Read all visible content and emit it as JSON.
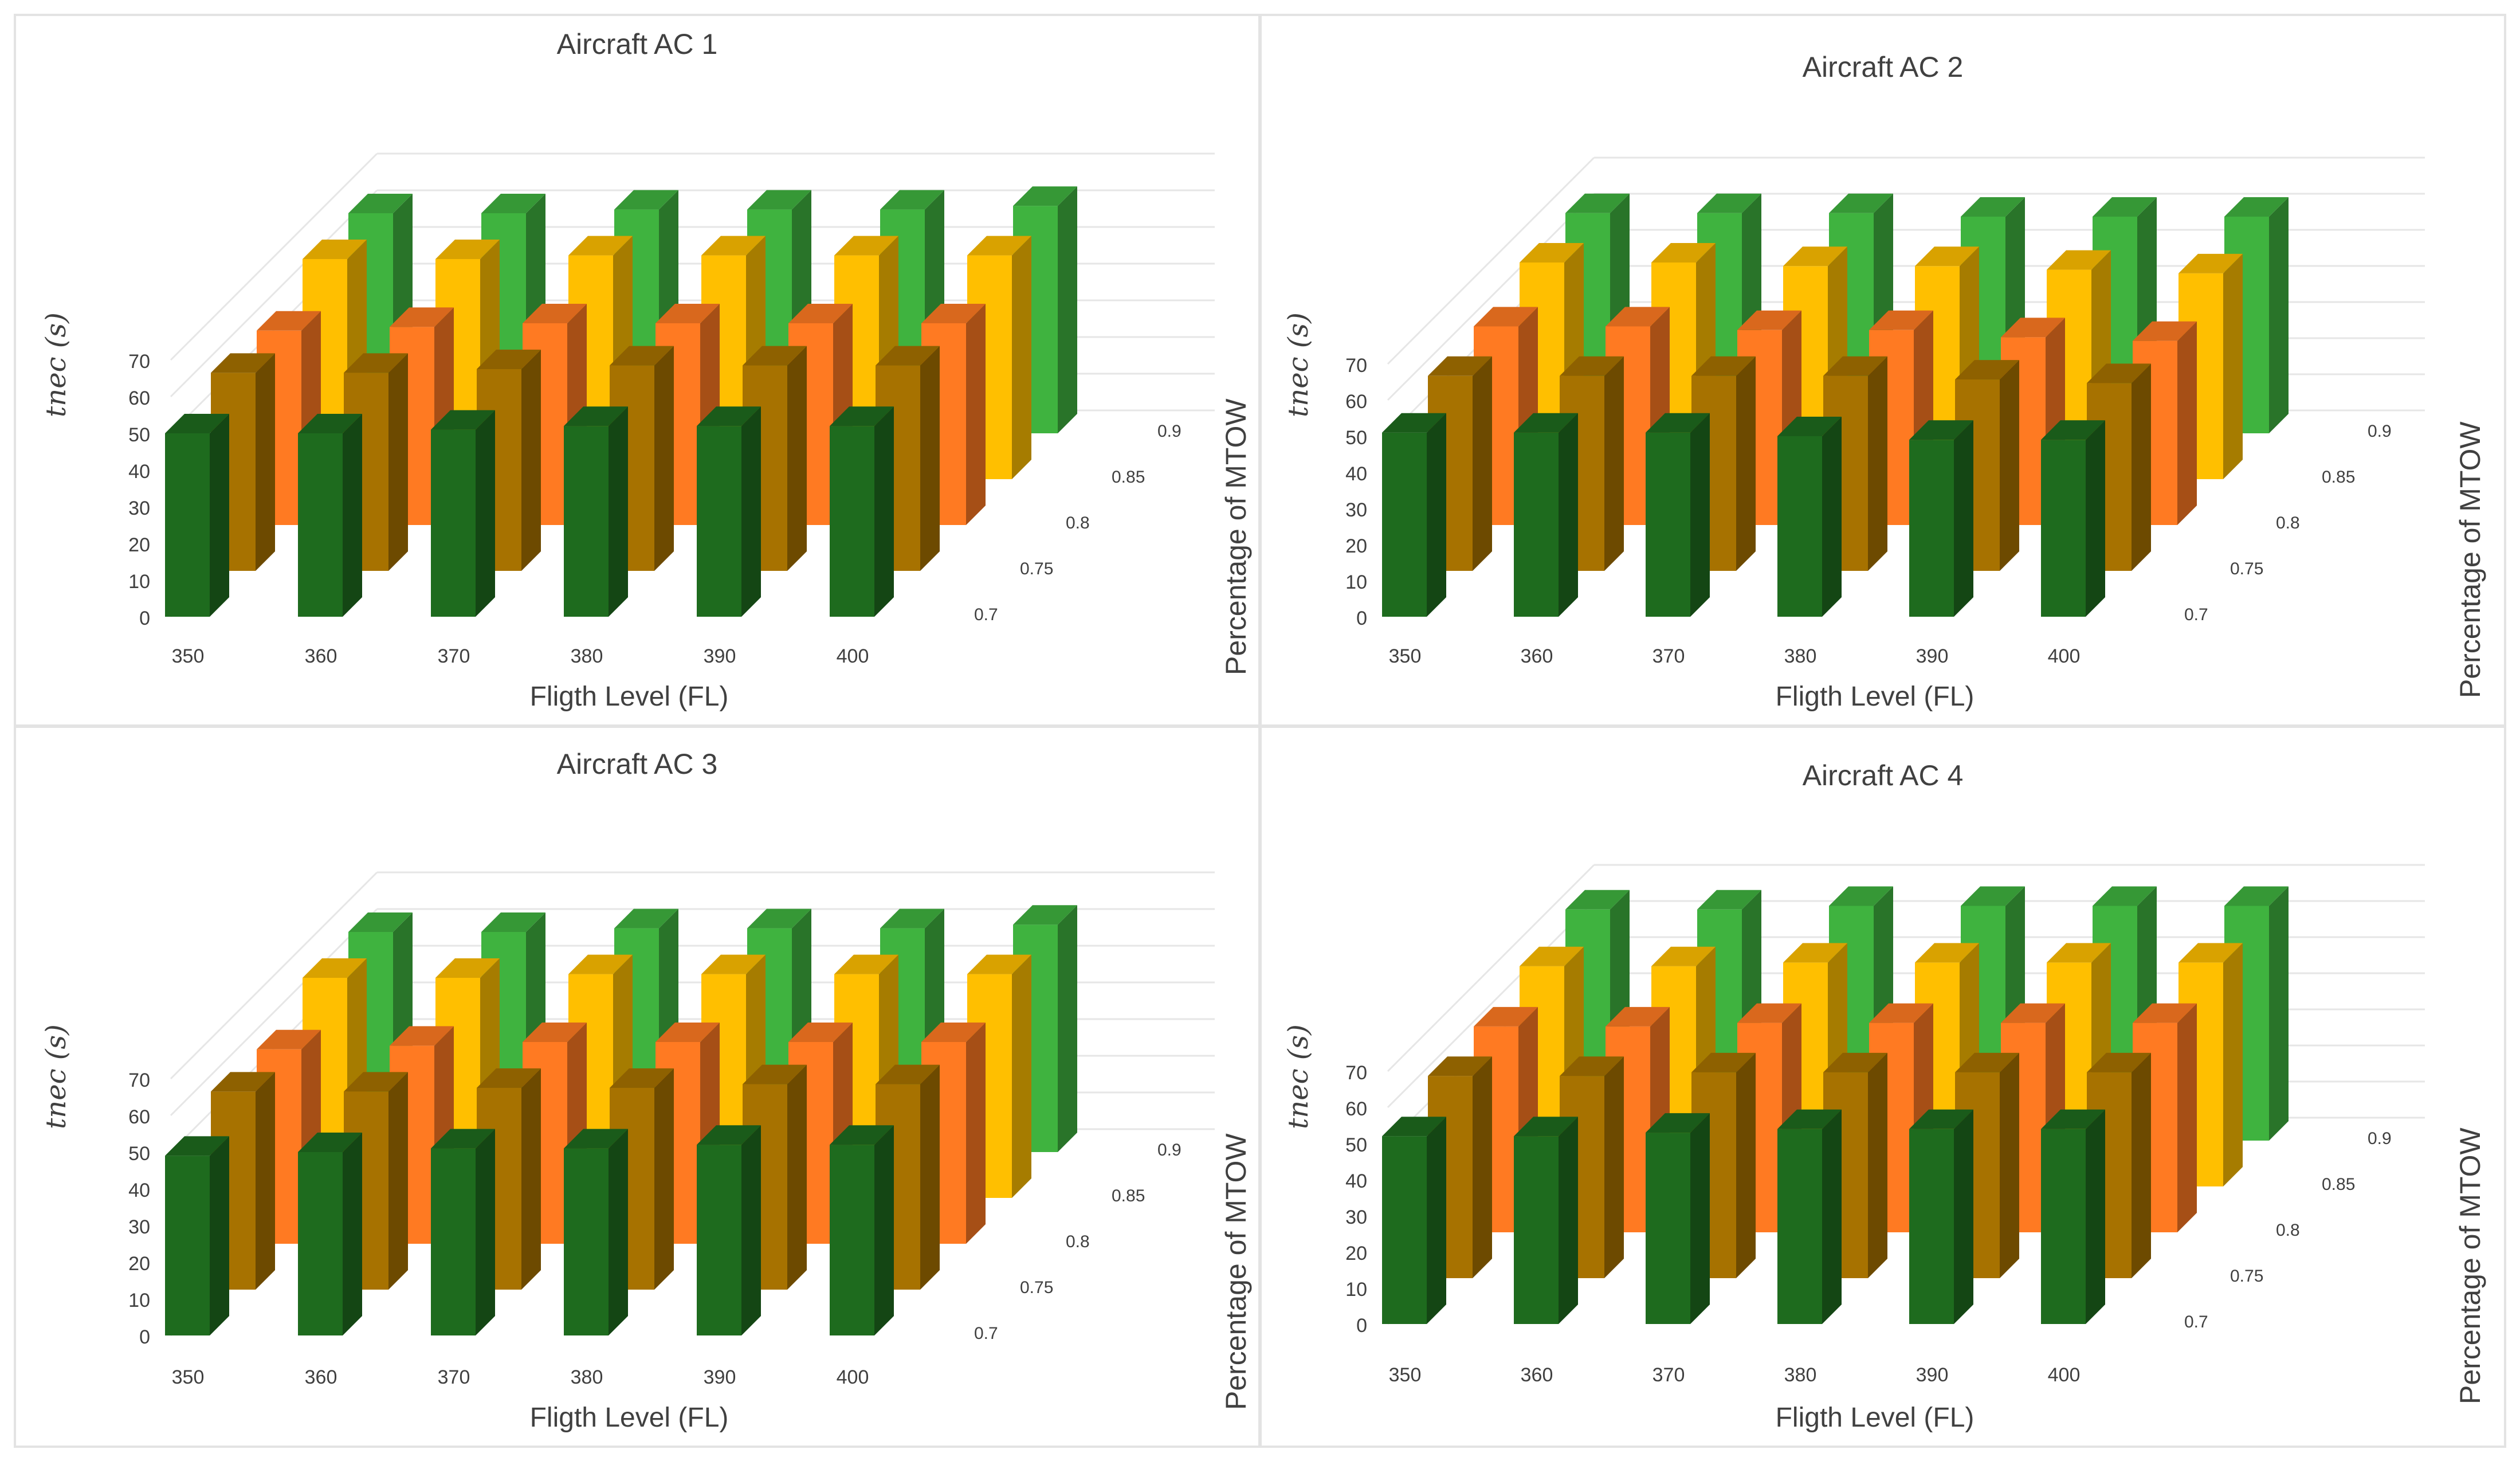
{
  "chart_data": [
    {
      "type": "bar",
      "title": "Aircraft AC 1",
      "xlabel": "Fligth Level (FL)",
      "ylabel": "tnec (s)",
      "zlabel": "Percentage of MTOW",
      "categories": [
        "350",
        "360",
        "370",
        "380",
        "390",
        "400"
      ],
      "ylim": [
        0,
        70
      ],
      "yticks": [
        "0",
        "10",
        "20",
        "30",
        "40",
        "50",
        "60",
        "70"
      ],
      "series": [
        {
          "name": "0.7",
          "color": "#1e6b1e",
          "values": [
            50,
            50,
            51,
            52,
            52,
            52
          ]
        },
        {
          "name": "0.75",
          "color": "#a77200",
          "values": [
            54,
            54,
            55,
            56,
            56,
            56
          ]
        },
        {
          "name": "0.8",
          "color": "#ff7a22",
          "values": [
            53,
            54,
            55,
            55,
            55,
            55
          ]
        },
        {
          "name": "0.85",
          "color": "#ffbf00",
          "values": [
            60,
            60,
            61,
            61,
            61,
            61
          ]
        },
        {
          "name": "0.9",
          "color": "#3fb33f",
          "values": [
            60,
            60,
            61,
            61,
            61,
            62
          ]
        }
      ]
    },
    {
      "type": "bar",
      "title": "Aircraft AC 2",
      "xlabel": "Fligth Level (FL)",
      "ylabel": "tnec (s)",
      "zlabel": "Percentage of MTOW",
      "categories": [
        "350",
        "360",
        "370",
        "380",
        "390",
        "400"
      ],
      "ylim": [
        0,
        70
      ],
      "yticks": [
        "0",
        "10",
        "20",
        "30",
        "40",
        "50",
        "60",
        "70"
      ],
      "series": [
        {
          "name": "0.7",
          "color": "#1e6b1e",
          "values": [
            51,
            51,
            51,
            50,
            49,
            49
          ]
        },
        {
          "name": "0.75",
          "color": "#a77200",
          "values": [
            54,
            54,
            54,
            54,
            53,
            52
          ]
        },
        {
          "name": "0.8",
          "color": "#ff7a22",
          "values": [
            55,
            55,
            54,
            54,
            52,
            51
          ]
        },
        {
          "name": "0.85",
          "color": "#ffbf00",
          "values": [
            60,
            60,
            59,
            59,
            58,
            57
          ]
        },
        {
          "name": "0.9",
          "color": "#3fb33f",
          "values": [
            61,
            61,
            61,
            60,
            60,
            60
          ]
        }
      ]
    },
    {
      "type": "bar",
      "title": "Aircraft AC 3",
      "xlabel": "Fligth Level (FL)",
      "ylabel": "tnec (s)",
      "zlabel": "Percentage of MTOW",
      "categories": [
        "350",
        "360",
        "370",
        "380",
        "390",
        "400"
      ],
      "ylim": [
        0,
        70
      ],
      "yticks": [
        "0",
        "10",
        "20",
        "30",
        "40",
        "50",
        "60",
        "70"
      ],
      "series": [
        {
          "name": "0.7",
          "color": "#1e6b1e",
          "values": [
            49,
            50,
            51,
            51,
            52,
            52
          ]
        },
        {
          "name": "0.75",
          "color": "#a77200",
          "values": [
            54,
            54,
            55,
            55,
            56,
            56
          ]
        },
        {
          "name": "0.8",
          "color": "#ff7a22",
          "values": [
            53,
            54,
            55,
            55,
            55,
            55
          ]
        },
        {
          "name": "0.85",
          "color": "#ffbf00",
          "values": [
            60,
            60,
            61,
            61,
            61,
            61
          ]
        },
        {
          "name": "0.9",
          "color": "#3fb33f",
          "values": [
            60,
            60,
            61,
            61,
            61,
            62
          ]
        }
      ]
    },
    {
      "type": "bar",
      "title": "Aircraft AC 4",
      "xlabel": "Fligth Level (FL)",
      "ylabel": "tnec (s)",
      "zlabel": "Percentage of MTOW",
      "categories": [
        "350",
        "360",
        "370",
        "380",
        "390",
        "400"
      ],
      "ylim": [
        0,
        70
      ],
      "yticks": [
        "0",
        "10",
        "20",
        "30",
        "40",
        "50",
        "60",
        "70"
      ],
      "series": [
        {
          "name": "0.7",
          "color": "#1e6b1e",
          "values": [
            52,
            52,
            53,
            54,
            54,
            54
          ]
        },
        {
          "name": "0.75",
          "color": "#a77200",
          "values": [
            56,
            56,
            57,
            57,
            57,
            57
          ]
        },
        {
          "name": "0.8",
          "color": "#ff7a22",
          "values": [
            57,
            57,
            58,
            58,
            58,
            58
          ]
        },
        {
          "name": "0.85",
          "color": "#ffbf00",
          "values": [
            61,
            61,
            62,
            62,
            62,
            62
          ]
        },
        {
          "name": "0.9",
          "color": "#3fb33f",
          "values": [
            64,
            64,
            65,
            65,
            65,
            65
          ]
        }
      ]
    }
  ]
}
